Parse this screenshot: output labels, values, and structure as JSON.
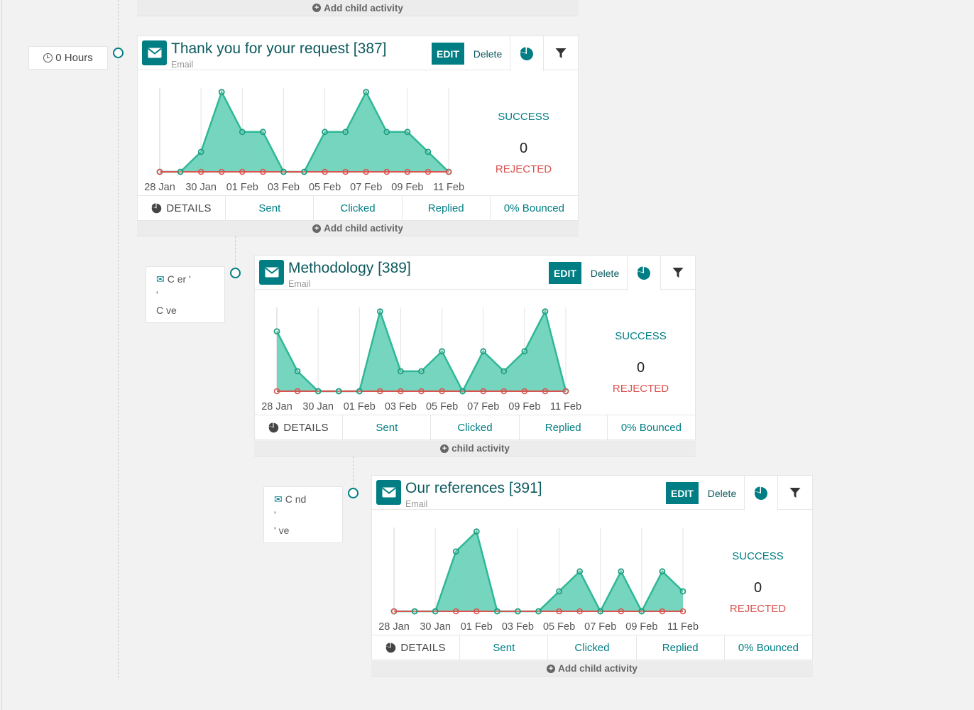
{
  "add_child_label": "Add child activity",
  "accent_color": "#017e84",
  "success_fill": "#6fd3bb",
  "rejected_color": "#d9534f",
  "trigger_first": {
    "label": "0 Hours",
    "icon": "clock-icon"
  },
  "trigger_smudged": [
    {
      "line1": "C    er   '",
      "line2": "'",
      "line3": "C     ve"
    },
    {
      "line1": "C    nd",
      "line2": "'",
      "line3": "'      ve"
    }
  ],
  "activities": [
    {
      "title": "Thank you for your request [387]",
      "subtitle": "Email",
      "edit_label": "EDIT",
      "delete_label": "Delete",
      "success_value": "",
      "success_label": "SUCCESS",
      "rejected_value": "0",
      "rejected_label": "REJECTED",
      "details_label": "DETAILS",
      "sent_label": "Sent",
      "clicked_label": "Clicked",
      "replied_label": "Replied",
      "bounced_label": "0% Bounced",
      "chart_data": {
        "type": "area",
        "x": [
          "28 Jan",
          "29 Jan",
          "30 Jan",
          "31 Jan",
          "01 Feb",
          "02 Feb",
          "03 Feb",
          "04 Feb",
          "05 Feb",
          "06 Feb",
          "07 Feb",
          "08 Feb",
          "09 Feb",
          "10 Feb",
          "11 Feb"
        ],
        "ylim": [
          0,
          4.2
        ],
        "series": [
          {
            "values": [
              0,
              0,
              1,
              4,
              2,
              2,
              0,
              0,
              2,
              2,
              4,
              2,
              2,
              1,
              0
            ]
          },
          {
            "values": [
              0,
              0,
              0,
              0,
              0,
              0,
              0,
              0,
              0,
              0,
              0,
              0,
              0,
              0,
              0
            ]
          }
        ],
        "tick_labels": [
          "28 Jan",
          "30 Jan",
          "01 Feb",
          "03 Feb",
          "05 Feb",
          "07 Feb",
          "09 Feb",
          "11 Feb"
        ]
      }
    },
    {
      "title": "Methodology [389]",
      "subtitle": "Email",
      "edit_label": "EDIT",
      "delete_label": "Delete",
      "success_value": "",
      "success_label": "SUCCESS",
      "rejected_value": "0",
      "rejected_label": "REJECTED",
      "details_label": "DETAILS",
      "sent_label": "Sent",
      "clicked_label": "Clicked",
      "replied_label": "Replied",
      "bounced_label": "0% Bounced",
      "add_child_label": "child activity",
      "chart_data": {
        "type": "area",
        "x": [
          "28 Jan",
          "29 Jan",
          "30 Jan",
          "31 Jan",
          "01 Feb",
          "02 Feb",
          "03 Feb",
          "04 Feb",
          "05 Feb",
          "06 Feb",
          "07 Feb",
          "08 Feb",
          "09 Feb",
          "10 Feb",
          "11 Feb"
        ],
        "ylim": [
          0,
          4.2
        ],
        "series": [
          {
            "values": [
              3,
              1,
              0,
              0,
              0,
              4,
              1,
              1,
              2,
              0,
              2,
              1,
              2,
              4,
              0
            ]
          },
          {
            "values": [
              0,
              0,
              0,
              0,
              0,
              0,
              0,
              0,
              0,
              0,
              0,
              0,
              0,
              0,
              0
            ]
          }
        ],
        "tick_labels": [
          "28 Jan",
          "30 Jan",
          "01 Feb",
          "03 Feb",
          "05 Feb",
          "07 Feb",
          "09 Feb",
          "11 Feb"
        ]
      }
    },
    {
      "title": "Our references [391]",
      "subtitle": "Email",
      "edit_label": "EDIT",
      "delete_label": "Delete",
      "success_value": "",
      "success_label": "SUCCESS",
      "rejected_value": "0",
      "rejected_label": "REJECTED",
      "details_label": "DETAILS",
      "sent_label": "Sent",
      "clicked_label": "Clicked",
      "replied_label": "Replied",
      "bounced_label": "0% Bounced",
      "chart_data": {
        "type": "area",
        "x": [
          "28 Jan",
          "29 Jan",
          "30 Jan",
          "31 Jan",
          "01 Feb",
          "02 Feb",
          "03 Feb",
          "04 Feb",
          "05 Feb",
          "06 Feb",
          "07 Feb",
          "08 Feb",
          "09 Feb",
          "10 Feb",
          "11 Feb"
        ],
        "ylim": [
          0,
          4.2
        ],
        "series": [
          {
            "values": [
              0,
              0,
              0,
              3,
              4,
              0,
              0,
              0,
              1,
              2,
              0,
              2,
              0,
              2,
              1
            ]
          },
          {
            "values": [
              0,
              0,
              0,
              0,
              0,
              0,
              0,
              0,
              0,
              0,
              0,
              0,
              0,
              0,
              0
            ]
          }
        ],
        "tick_labels": [
          "28 Jan",
          "30 Jan",
          "01 Feb",
          "03 Feb",
          "05 Feb",
          "07 Feb",
          "09 Feb",
          "11 Feb"
        ]
      }
    }
  ]
}
